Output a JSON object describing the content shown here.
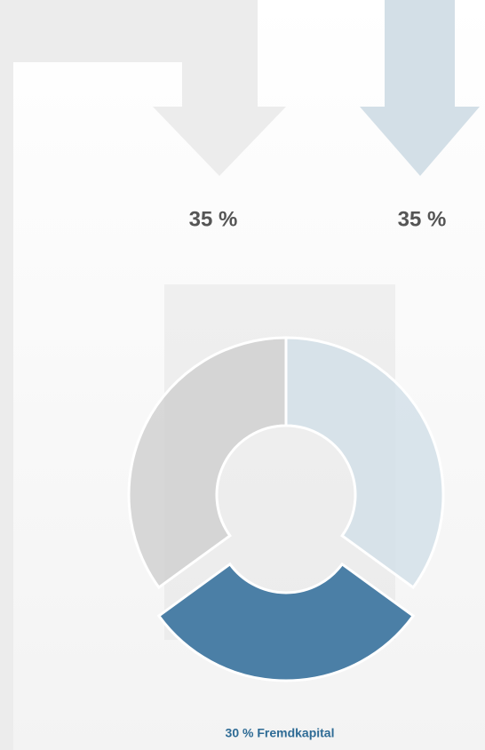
{
  "chart_data": {
    "type": "donut",
    "values": [
      35,
      30,
      35
    ],
    "value_labels": [
      "35 %",
      "30 % Fremdkapital",
      "35 %"
    ],
    "colors": [
      "#cfdde7",
      "#4b7fa6",
      "#cccccc"
    ]
  }
}
